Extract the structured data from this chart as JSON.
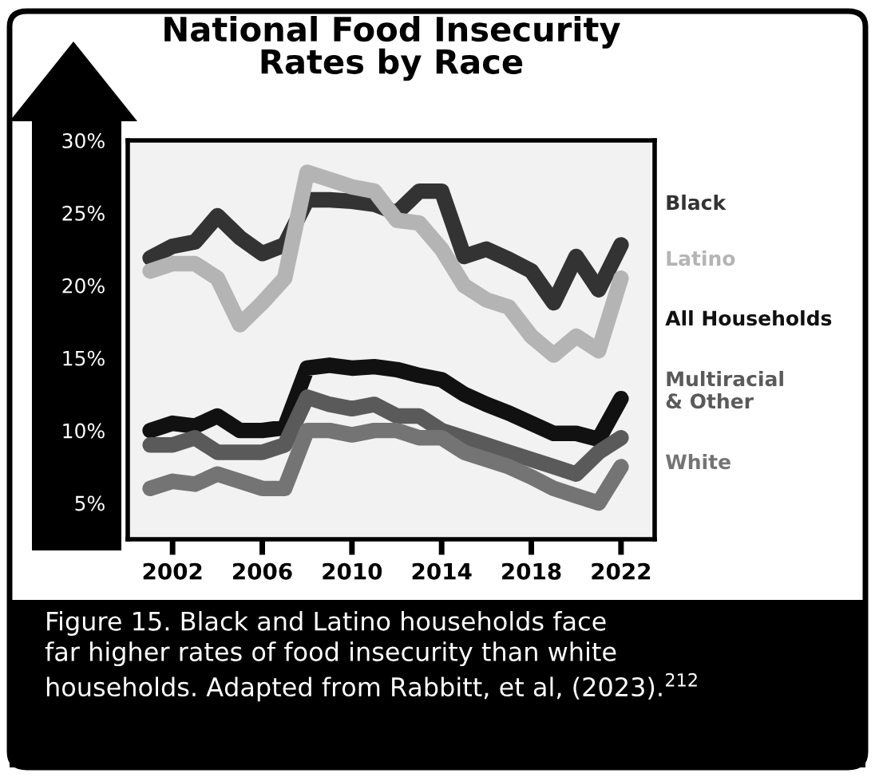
{
  "chart_data": {
    "type": "line",
    "title": "National Food Insecurity\nRates by Race",
    "x": [
      2001,
      2002,
      2003,
      2004,
      2005,
      2006,
      2007,
      2008,
      2009,
      2010,
      2011,
      2012,
      2013,
      2014,
      2015,
      2016,
      2017,
      2018,
      2019,
      2020,
      2021,
      2022
    ],
    "series": [
      {
        "name": "Black",
        "color": "#333333",
        "values": [
          21.9,
          22.7,
          23,
          24.8,
          23.3,
          22.2,
          22.8,
          25.9,
          25.9,
          25.8,
          25.6,
          25,
          26.5,
          26.5,
          22,
          22.5,
          21.8,
          21,
          18.8,
          22,
          19.7,
          22.8
        ]
      },
      {
        "name": "Latino",
        "color": "#b4b4b4",
        "values": [
          21,
          21.5,
          21.5,
          20.5,
          17.3,
          18.8,
          20.5,
          27.8,
          27.3,
          26.8,
          26.5,
          24.5,
          24.3,
          22.5,
          20,
          19,
          18.5,
          16.5,
          15.2,
          16.5,
          15.5,
          20.5
        ]
      },
      {
        "name": "All Households",
        "color": "#111111",
        "values": [
          10,
          10.5,
          10.3,
          11,
          10,
          10,
          10.2,
          14.3,
          14.5,
          14.3,
          14.4,
          14.2,
          13.8,
          13.5,
          12.5,
          11.8,
          11.2,
          10.5,
          9.8,
          9.8,
          9.4,
          12.2
        ]
      },
      {
        "name": "Multiracial\n& Other",
        "color": "#5a5a5a",
        "values": [
          9,
          9,
          9.5,
          8.5,
          8.5,
          8.5,
          9,
          12.3,
          11.8,
          11.5,
          11.8,
          11,
          11,
          10,
          9.5,
          9,
          8.5,
          8,
          7.5,
          7,
          8.5,
          9.5
        ]
      },
      {
        "name": "White",
        "color": "#747474",
        "values": [
          6,
          6.5,
          6.3,
          7,
          6.5,
          6,
          6,
          10,
          10,
          9.7,
          10,
          10,
          9.5,
          9.5,
          8.5,
          8,
          7.5,
          6.8,
          6,
          5.5,
          5,
          7.5
        ]
      }
    ],
    "xlim": [
      2000,
      2023.5
    ],
    "xticks": [
      2002,
      2006,
      2010,
      2014,
      2018,
      2022
    ],
    "ylim": [
      2.5,
      30
    ],
    "yticks": [
      {
        "value": 5,
        "label": "5%"
      },
      {
        "value": 10,
        "label": "10%"
      },
      {
        "value": 15,
        "label": "15%"
      },
      {
        "value": 20,
        "label": "20%"
      },
      {
        "value": 25,
        "label": "25%"
      },
      {
        "value": 30,
        "label": "30%"
      }
    ],
    "grid": false,
    "legend": "right",
    "marker": "none",
    "line_style": "solid",
    "annotations": [
      "Figure 15. Black and Latino households face\nfar higher rates of food insecurity than white\nhouseholds. Adapted from Rabbitt, et al, (2023).$^{212}$"
    ]
  }
}
